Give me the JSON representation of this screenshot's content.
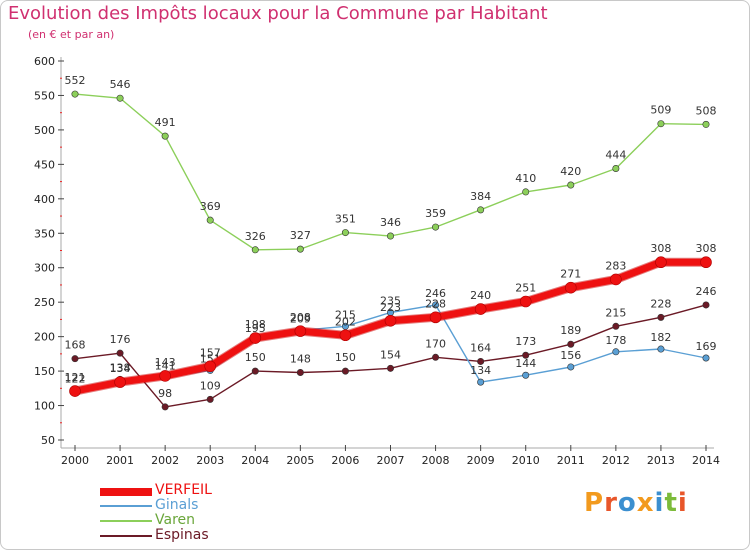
{
  "header": {
    "title": "Evolution des Impôts locaux pour la Commune par Habitant",
    "subtitle": "(en € et par an)"
  },
  "colors": {
    "title": "#d03070",
    "VERFEIL": "#ee1111",
    "Ginals": "#5a9fd4",
    "Varen": "#8ccf5a",
    "Espinas": "#6b1a26"
  },
  "logo": {
    "text": "Proxiti"
  },
  "chart_data": {
    "type": "line",
    "x": [
      2000,
      2001,
      2002,
      2003,
      2004,
      2005,
      2006,
      2007,
      2008,
      2009,
      2010,
      2011,
      2012,
      2013,
      2014
    ],
    "xlim": [
      2000,
      2014
    ],
    "ylim": [
      50,
      600
    ],
    "yticks": [
      50,
      100,
      150,
      200,
      250,
      300,
      350,
      400,
      450,
      500,
      550,
      600
    ],
    "grid": false,
    "legend": "bottom-left",
    "series": [
      {
        "name": "VERFEIL",
        "values": [
          121,
          134,
          143,
          157,
          198,
          208,
          202,
          223,
          228,
          240,
          251,
          271,
          283,
          308,
          308
        ]
      },
      {
        "name": "Ginals",
        "values": [
          122,
          138,
          141,
          151,
          195,
          209,
          215,
          235,
          246,
          134,
          144,
          156,
          178,
          182,
          169
        ]
      },
      {
        "name": "Varen",
        "values": [
          552,
          546,
          491,
          369,
          326,
          327,
          351,
          346,
          359,
          384,
          410,
          420,
          444,
          509,
          508
        ]
      },
      {
        "name": "Espinas",
        "values": [
          168,
          176,
          98,
          109,
          150,
          148,
          150,
          154,
          170,
          164,
          173,
          189,
          215,
          228,
          246
        ]
      }
    ]
  }
}
